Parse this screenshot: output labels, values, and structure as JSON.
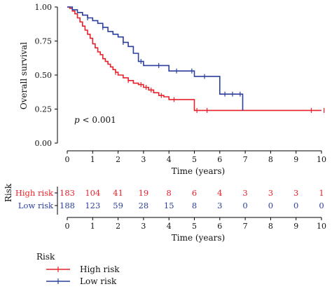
{
  "colors": {
    "high": "#e8202a",
    "low": "#2b3f9e",
    "axis": "#000000"
  },
  "chart_data": [
    {
      "type": "line",
      "subtype": "kaplan-meier",
      "ylabel": "Overall survival",
      "xlabel": "Time (years)",
      "xlim": [
        0,
        10
      ],
      "ylim": [
        0,
        1
      ],
      "xticks": [
        "0",
        "1",
        "2",
        "3",
        "4",
        "5",
        "6",
        "7",
        "8",
        "9",
        "10"
      ],
      "yticks": [
        "0.00",
        "0.25",
        "0.50",
        "0.75",
        "1.00"
      ],
      "annotation": {
        "p_label": "p",
        "p_text": " < 0.001"
      },
      "series": [
        {
          "name": "High risk",
          "color": "#e8202a",
          "x": [
            0,
            0.1,
            0.2,
            0.3,
            0.4,
            0.5,
            0.6,
            0.7,
            0.8,
            0.9,
            1.0,
            1.1,
            1.2,
            1.3,
            1.4,
            1.5,
            1.6,
            1.7,
            1.8,
            1.9,
            2.0,
            2.2,
            2.4,
            2.6,
            2.8,
            3.0,
            3.2,
            3.4,
            3.6,
            3.8,
            4.0,
            4.4,
            4.8,
            5.0,
            5.6,
            6.0,
            7.0,
            8.0,
            9.0,
            10.0
          ],
          "y": [
            1.0,
            0.99,
            0.97,
            0.95,
            0.92,
            0.89,
            0.86,
            0.83,
            0.8,
            0.77,
            0.73,
            0.7,
            0.67,
            0.65,
            0.62,
            0.6,
            0.58,
            0.56,
            0.54,
            0.52,
            0.5,
            0.48,
            0.46,
            0.44,
            0.43,
            0.41,
            0.39,
            0.37,
            0.35,
            0.34,
            0.32,
            0.32,
            0.32,
            0.24,
            0.24,
            0.24,
            0.24,
            0.24,
            0.24,
            0.24
          ],
          "censor_x": [
            1.9,
            2.4,
            2.9,
            3.1,
            3.3,
            3.7,
            4.2,
            5.1,
            5.5,
            9.6,
            10.1
          ]
        },
        {
          "name": "Low risk",
          "color": "#2b3f9e",
          "x": [
            0,
            0.2,
            0.4,
            0.6,
            0.8,
            1.0,
            1.2,
            1.4,
            1.6,
            1.8,
            2.0,
            2.2,
            2.4,
            2.6,
            2.8,
            3.0,
            3.5,
            3.8,
            4.0,
            4.6,
            5.0,
            5.8,
            6.0,
            6.9
          ],
          "y": [
            1.0,
            0.98,
            0.96,
            0.94,
            0.92,
            0.9,
            0.88,
            0.85,
            0.82,
            0.8,
            0.78,
            0.74,
            0.71,
            0.66,
            0.6,
            0.57,
            0.57,
            0.57,
            0.53,
            0.53,
            0.49,
            0.49,
            0.36,
            0.24
          ],
          "censor_x": [
            0.8,
            1.4,
            2.2,
            2.9,
            3.6,
            4.3,
            4.9,
            5.4,
            6.2,
            6.5,
            6.8
          ]
        }
      ]
    },
    {
      "type": "table",
      "title": "Risk",
      "xlabel": "Time (years)",
      "xticks": [
        "0",
        "1",
        "2",
        "3",
        "4",
        "5",
        "6",
        "7",
        "8",
        "9",
        "10"
      ],
      "rows": [
        {
          "label": "High risk",
          "color": "#e8202a",
          "values": [
            "183",
            "104",
            "41",
            "19",
            "8",
            "6",
            "4",
            "3",
            "3",
            "3",
            "1"
          ]
        },
        {
          "label": "Low risk",
          "color": "#2b3f9e",
          "values": [
            "188",
            "123",
            "59",
            "28",
            "15",
            "8",
            "3",
            "0",
            "0",
            "0",
            "0"
          ]
        }
      ]
    }
  ],
  "legend": {
    "title": "Risk",
    "items": [
      {
        "label": "High risk",
        "color": "#e8202a"
      },
      {
        "label": "Low risk",
        "color": "#2b3f9e"
      }
    ]
  }
}
